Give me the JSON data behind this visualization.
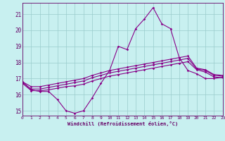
{
  "xlabel": "Windchill (Refroidissement éolien,°C)",
  "background_color": "#c8f0f0",
  "line_color": "#880088",
  "x": [
    0,
    1,
    2,
    3,
    4,
    5,
    6,
    7,
    8,
    9,
    10,
    11,
    12,
    13,
    14,
    15,
    16,
    17,
    18,
    19,
    20,
    21,
    22,
    23
  ],
  "line1": [
    16.8,
    16.3,
    16.2,
    16.2,
    15.7,
    15.0,
    14.85,
    15.0,
    15.8,
    16.7,
    17.5,
    19.0,
    18.8,
    20.1,
    20.7,
    21.4,
    20.4,
    20.1,
    18.3,
    17.5,
    17.3,
    17.0,
    17.0,
    17.1
  ],
  "line2": [
    16.7,
    16.25,
    16.25,
    16.3,
    16.4,
    16.5,
    16.55,
    16.65,
    16.85,
    17.0,
    17.15,
    17.25,
    17.35,
    17.45,
    17.55,
    17.65,
    17.75,
    17.85,
    17.95,
    18.05,
    17.55,
    17.4,
    17.1,
    17.05
  ],
  "line3": [
    16.75,
    16.35,
    16.35,
    16.45,
    16.55,
    16.65,
    16.75,
    16.85,
    17.05,
    17.2,
    17.35,
    17.45,
    17.55,
    17.65,
    17.75,
    17.85,
    17.95,
    18.05,
    18.15,
    18.25,
    17.6,
    17.5,
    17.2,
    17.15
  ],
  "line4": [
    16.8,
    16.5,
    16.5,
    16.6,
    16.7,
    16.8,
    16.9,
    17.0,
    17.2,
    17.35,
    17.5,
    17.6,
    17.7,
    17.8,
    17.9,
    18.0,
    18.1,
    18.2,
    18.3,
    18.4,
    17.65,
    17.55,
    17.25,
    17.2
  ],
  "ylim": [
    14.7,
    21.7
  ],
  "xlim": [
    0,
    23
  ],
  "yticks": [
    15,
    16,
    17,
    18,
    19,
    20,
    21
  ],
  "xticks": [
    0,
    1,
    2,
    3,
    4,
    5,
    6,
    7,
    8,
    9,
    10,
    11,
    12,
    13,
    14,
    15,
    16,
    17,
    18,
    19,
    20,
    21,
    22,
    23
  ],
  "grid_color": "#99cccc",
  "spine_color": "#660066",
  "tick_color": "#660066",
  "marker": "D",
  "markersize": 1.8,
  "linewidth": 0.8
}
